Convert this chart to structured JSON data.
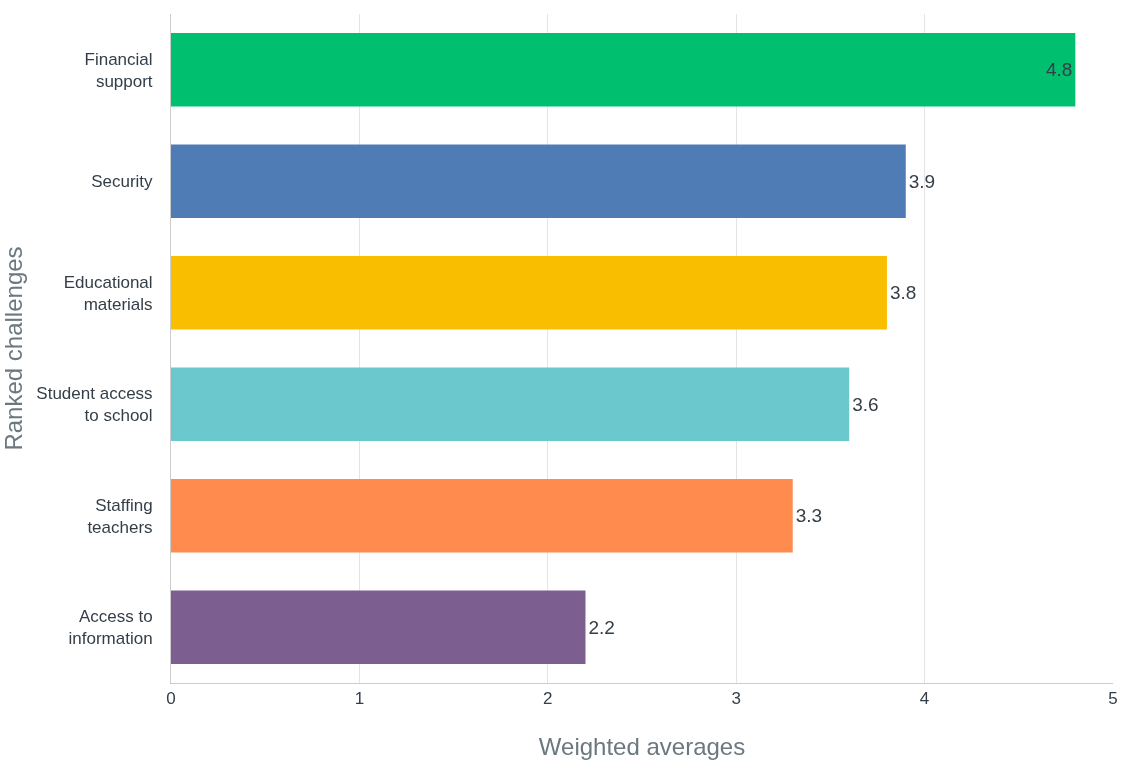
{
  "chart_data": {
    "type": "bar",
    "orientation": "horizontal",
    "ylabel": "Ranked challenges",
    "xlabel": "Weighted averages",
    "categories": [
      "Financial support",
      "Security",
      "Educational materials",
      "Student access to school",
      "Staffing teachers",
      "Access to information"
    ],
    "values": [
      4.8,
      3.9,
      3.8,
      3.6,
      3.3,
      2.2
    ],
    "colors": [
      "#00bf6f",
      "#507cb6",
      "#f9be00",
      "#6bc8cd",
      "#ff8b4f",
      "#7d5e90"
    ],
    "xlim": [
      0,
      5
    ],
    "xticks": [
      0,
      1,
      2,
      3,
      4,
      5
    ],
    "grid": "x",
    "data_labels": true
  }
}
